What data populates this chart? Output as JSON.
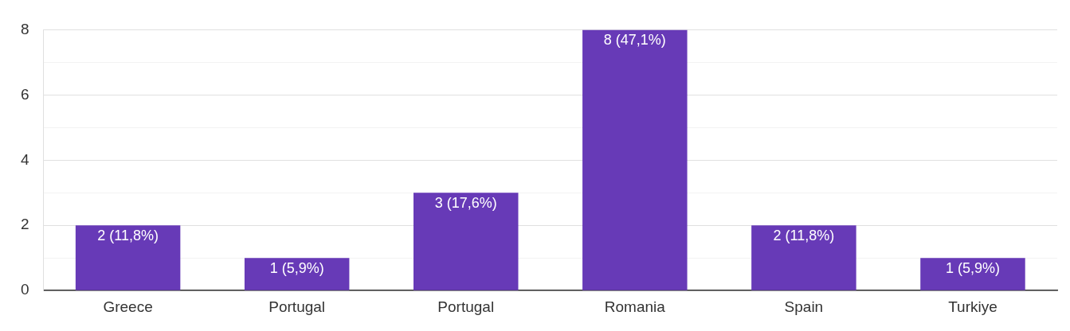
{
  "chart_data": {
    "type": "bar",
    "categories": [
      "Greece",
      "Portugal",
      "Portugal",
      "Romania",
      "Spain",
      "Turkiye"
    ],
    "values": [
      2,
      1,
      3,
      8,
      2,
      1
    ],
    "color": "#673ab7",
    "value_labels": [
      "2 (11,8%)",
      "1 (5,9%)",
      "3 (17,6%)",
      "8 (47,1%)",
      "2 (11,8%)",
      "1 (5,9%)"
    ],
    "ylim": [
      0,
      8
    ],
    "yticks": [
      0,
      {
        "value": 1,
        "label": null
      },
      2,
      {
        "value": 3,
        "label": null
      },
      4,
      {
        "value": 5,
        "label": null
      },
      6,
      {
        "value": 7,
        "label": null
      },
      8
    ],
    "grid": "y",
    "legend": false
  }
}
